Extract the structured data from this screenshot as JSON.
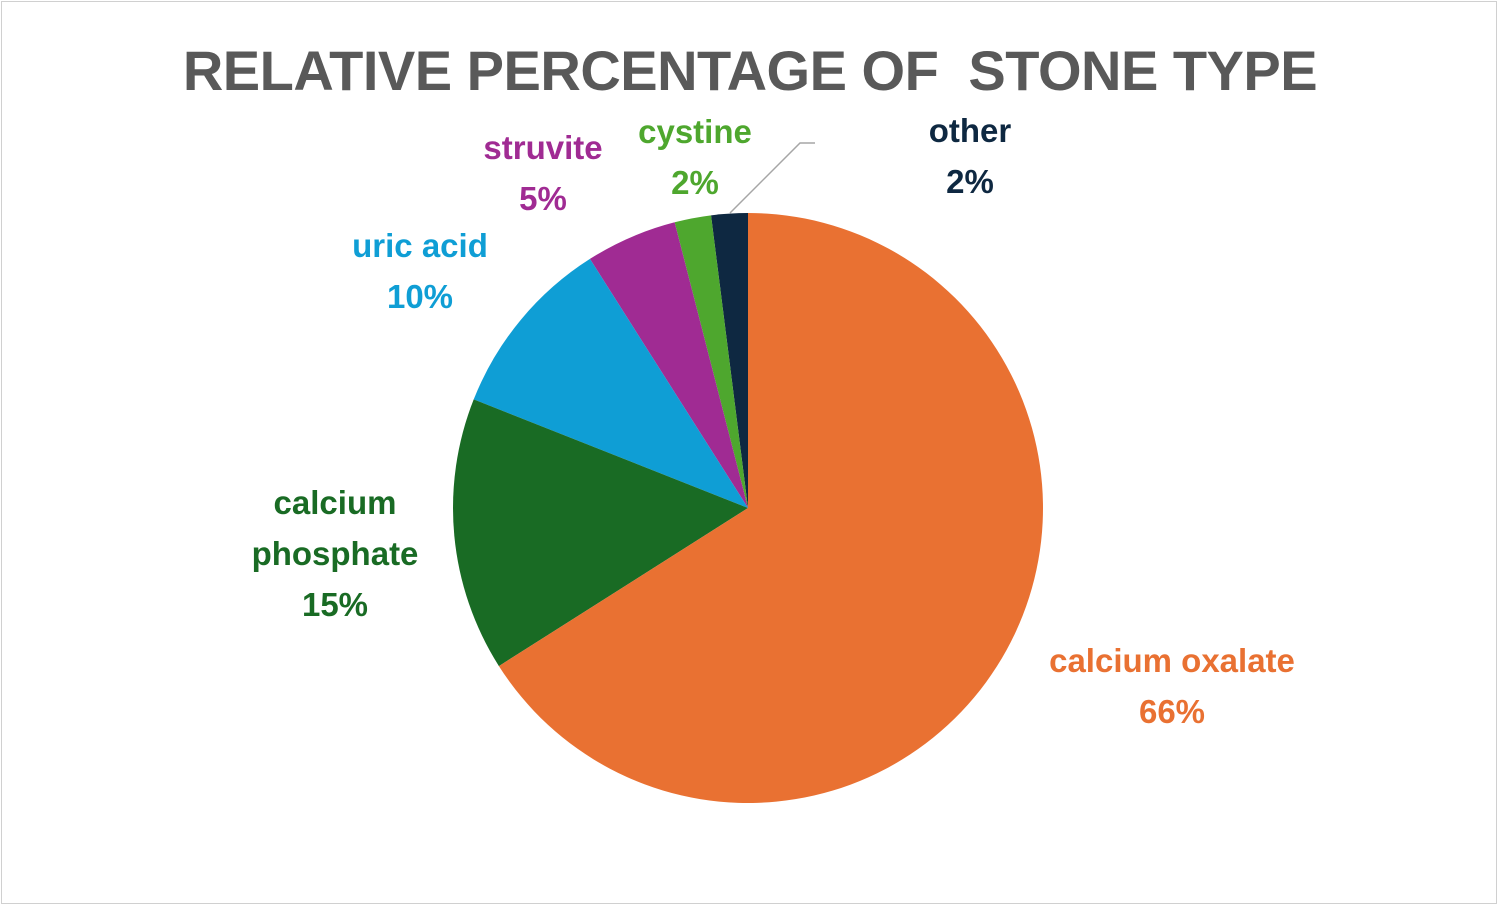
{
  "chart_data": {
    "type": "pie",
    "title": "RELATIVE PERCENTAGE OF  STONE TYPE",
    "categories": [
      "calcium oxalate",
      "calcium phosphate",
      "uric acid",
      "struvite",
      "cystine",
      "other"
    ],
    "values": [
      66,
      15,
      10,
      5,
      2,
      2
    ],
    "value_labels": [
      "66%",
      "15%",
      "10%",
      "5%",
      "2%",
      "2%"
    ],
    "colors": [
      "#E97132",
      "#196B24",
      "#0F9ED5",
      "#A02B93",
      "#4EA72E",
      "#0E2841"
    ]
  }
}
